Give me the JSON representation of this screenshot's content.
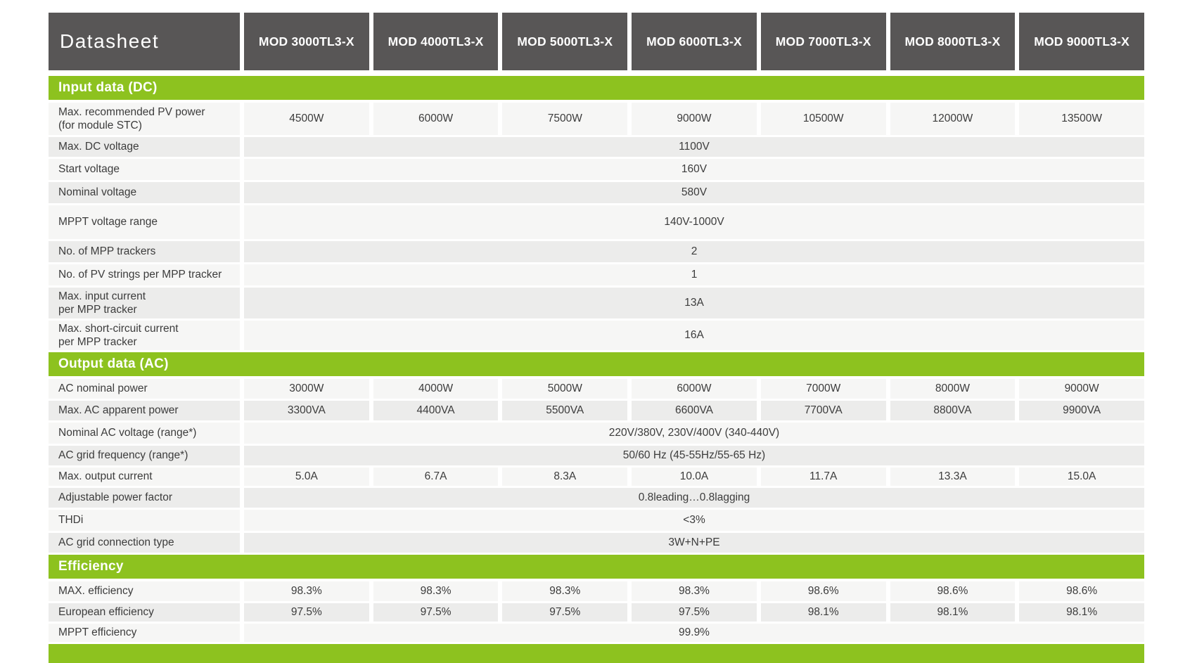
{
  "header": {
    "title": "Datasheet",
    "models": [
      "MOD 3000TL3-X",
      "MOD 4000TL3-X",
      "MOD 5000TL3-X",
      "MOD 6000TL3-X",
      "MOD 7000TL3-X",
      "MOD 8000TL3-X",
      "MOD 9000TL3-X"
    ]
  },
  "sections": [
    {
      "title": "Input data (DC)",
      "rows": [
        {
          "label": "Max. recommended PV power\n(for module STC)",
          "values": [
            "4500W",
            "6000W",
            "7500W",
            "9000W",
            "10500W",
            "12000W",
            "13500W"
          ]
        },
        {
          "label": "Max. DC voltage",
          "merged": "1100V"
        },
        {
          "label": "Start voltage",
          "merged": "160V"
        },
        {
          "label": "Nominal voltage",
          "merged": "580V"
        },
        {
          "label": "MPPT voltage range",
          "merged": "140V-1000V"
        },
        {
          "label": "No. of MPP trackers",
          "merged": "2"
        },
        {
          "label": "No. of PV strings per MPP tracker",
          "merged": "1"
        },
        {
          "label": "Max. input current\nper MPP tracker",
          "merged": "13A"
        },
        {
          "label": "Max. short-circuit current\nper MPP tracker",
          "merged": "16A"
        }
      ]
    },
    {
      "title": "Output data (AC)",
      "rows": [
        {
          "label": "AC nominal power",
          "values": [
            "3000W",
            "4000W",
            "5000W",
            "6000W",
            "7000W",
            "8000W",
            "9000W"
          ]
        },
        {
          "label": "Max. AC apparent power",
          "values": [
            "3300VA",
            "4400VA",
            "5500VA",
            "6600VA",
            "7700VA",
            "8800VA",
            "9900VA"
          ]
        },
        {
          "label": "Nominal AC voltage  (range*)",
          "merged": "220V/380V, 230V/400V  (340-440V)"
        },
        {
          "label": "AC grid frequency  (range*)",
          "merged": "50/60 Hz (45-55Hz/55-65 Hz)"
        },
        {
          "label": "Max. output current",
          "values": [
            "5.0A",
            "6.7A",
            "8.3A",
            "10.0A",
            "11.7A",
            "13.3A",
            "15.0A"
          ]
        },
        {
          "label": "Adjustable power factor",
          "merged": "0.8leading…0.8lagging"
        },
        {
          "label": "THDi",
          "merged": "<3%"
        },
        {
          "label": "AC grid connection type",
          "merged": "3W+N+PE"
        }
      ]
    },
    {
      "title": "Efficiency",
      "rows": [
        {
          "label": "MAX. efficiency",
          "values": [
            "98.3%",
            "98.3%",
            "98.3%",
            "98.3%",
            "98.6%",
            "98.6%",
            "98.6%"
          ]
        },
        {
          "label": "European efficiency",
          "values": [
            "97.5%",
            "97.5%",
            "97.5%",
            "97.5%",
            "98.1%",
            "98.1%",
            "98.1%"
          ]
        },
        {
          "label": "MPPT efficiency",
          "merged": "99.9%"
        }
      ]
    }
  ],
  "colors": {
    "brand_green": "#8dc21f",
    "header_dark": "#585656",
    "row_light": "#f6f6f5",
    "row_shade": "#ececeb",
    "text": "#3c3c3c"
  }
}
